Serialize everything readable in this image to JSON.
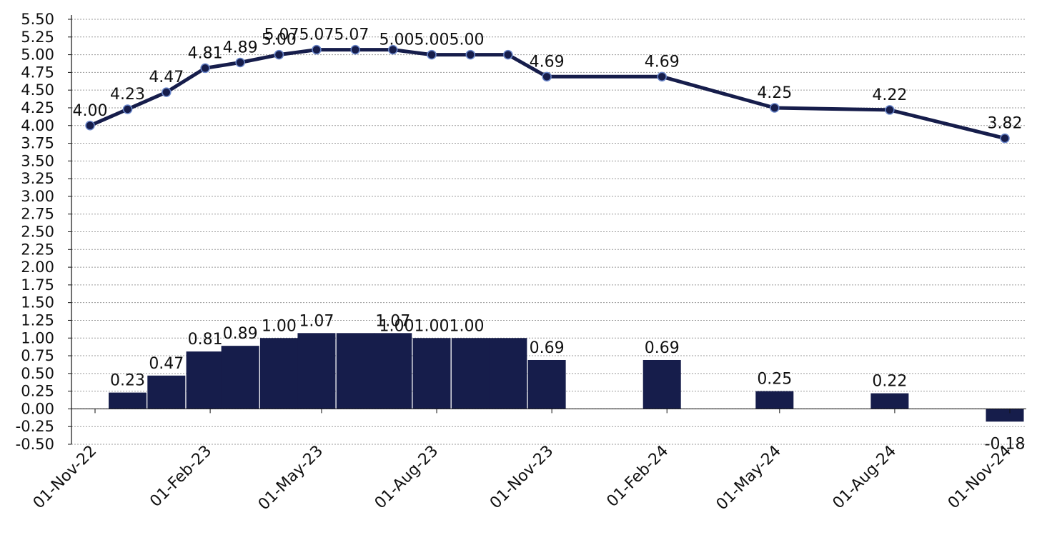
{
  "chart_data": {
    "type": "bar+line",
    "title": "",
    "xlabel": "",
    "ylabel": "",
    "ylim": [
      -0.5,
      5.5
    ],
    "ytick_step": 0.25,
    "grid": true,
    "legend": "none",
    "x_tick_labels": [
      "01-Nov-22",
      "01-Feb-23",
      "01-May-23",
      "01-Aug-23",
      "01-Nov-23",
      "01-Feb-24",
      "01-May-24",
      "01-Aug-24",
      "01-Nov-24"
    ],
    "y_tick_labels": [
      "-0.50",
      "-0.25",
      "0.00",
      "0.25",
      "0.50",
      "0.75",
      "1.00",
      "1.25",
      "1.50",
      "1.75",
      "2.00",
      "2.25",
      "2.50",
      "2.75",
      "3.00",
      "3.25",
      "3.50",
      "3.75",
      "4.00",
      "4.25",
      "4.50",
      "4.75",
      "5.00",
      "5.25",
      "5.50"
    ],
    "line_series": {
      "dates": [
        "2022-11-01",
        "2022-12-01",
        "2023-01-01",
        "2023-02-01",
        "2023-03-01",
        "2023-04-01",
        "2023-05-01",
        "2023-06-01",
        "2023-07-01",
        "2023-08-01",
        "2023-09-01",
        "2023-10-01",
        "2023-11-01",
        "2024-02-01",
        "2024-05-01",
        "2024-08-01",
        "2024-11-01"
      ],
      "values": [
        4.0,
        4.23,
        4.47,
        4.81,
        4.89,
        5.0,
        5.07,
        5.07,
        5.07,
        5.0,
        5.0,
        5.0,
        4.69,
        4.69,
        4.25,
        4.22,
        3.82
      ],
      "labels": [
        "4.00",
        "4.23",
        "4.47",
        "4.81",
        "4.89",
        "5.00",
        "5.075.075.07",
        "",
        "",
        "5.005.005.00",
        "",
        "",
        "4.69",
        "4.69",
        "4.25",
        "4.22",
        "3.82"
      ]
    },
    "bar_series": {
      "dates": [
        "2022-12-01",
        "2023-01-01",
        "2023-02-01",
        "2023-03-01",
        "2023-04-01",
        "2023-05-01",
        "2023-06-01",
        "2023-07-01",
        "2023-08-01",
        "2023-09-01",
        "2023-10-01",
        "2023-11-01",
        "2024-02-01",
        "2024-05-01",
        "2024-08-01",
        "2024-11-01"
      ],
      "values": [
        0.23,
        0.47,
        0.81,
        0.89,
        1.0,
        1.07,
        1.07,
        1.07,
        1.0,
        1.0,
        1.0,
        0.69,
        0.69,
        0.25,
        0.22,
        -0.18
      ],
      "labels": [
        "0.23",
        "0.47",
        "0.81",
        "0.89",
        "1.00",
        "1.07",
        "",
        "1.07",
        "1.001.001.00",
        "",
        "",
        "0.69",
        "0.69",
        "0.25",
        "0.22",
        "-0.18"
      ]
    },
    "colors": {
      "bar": "#161d4b",
      "line": "#161d4b",
      "marker_fill": "#161d4b",
      "marker_edge": "#6a86c9",
      "grid": "#9a9a9a",
      "axis": "#111111"
    }
  }
}
